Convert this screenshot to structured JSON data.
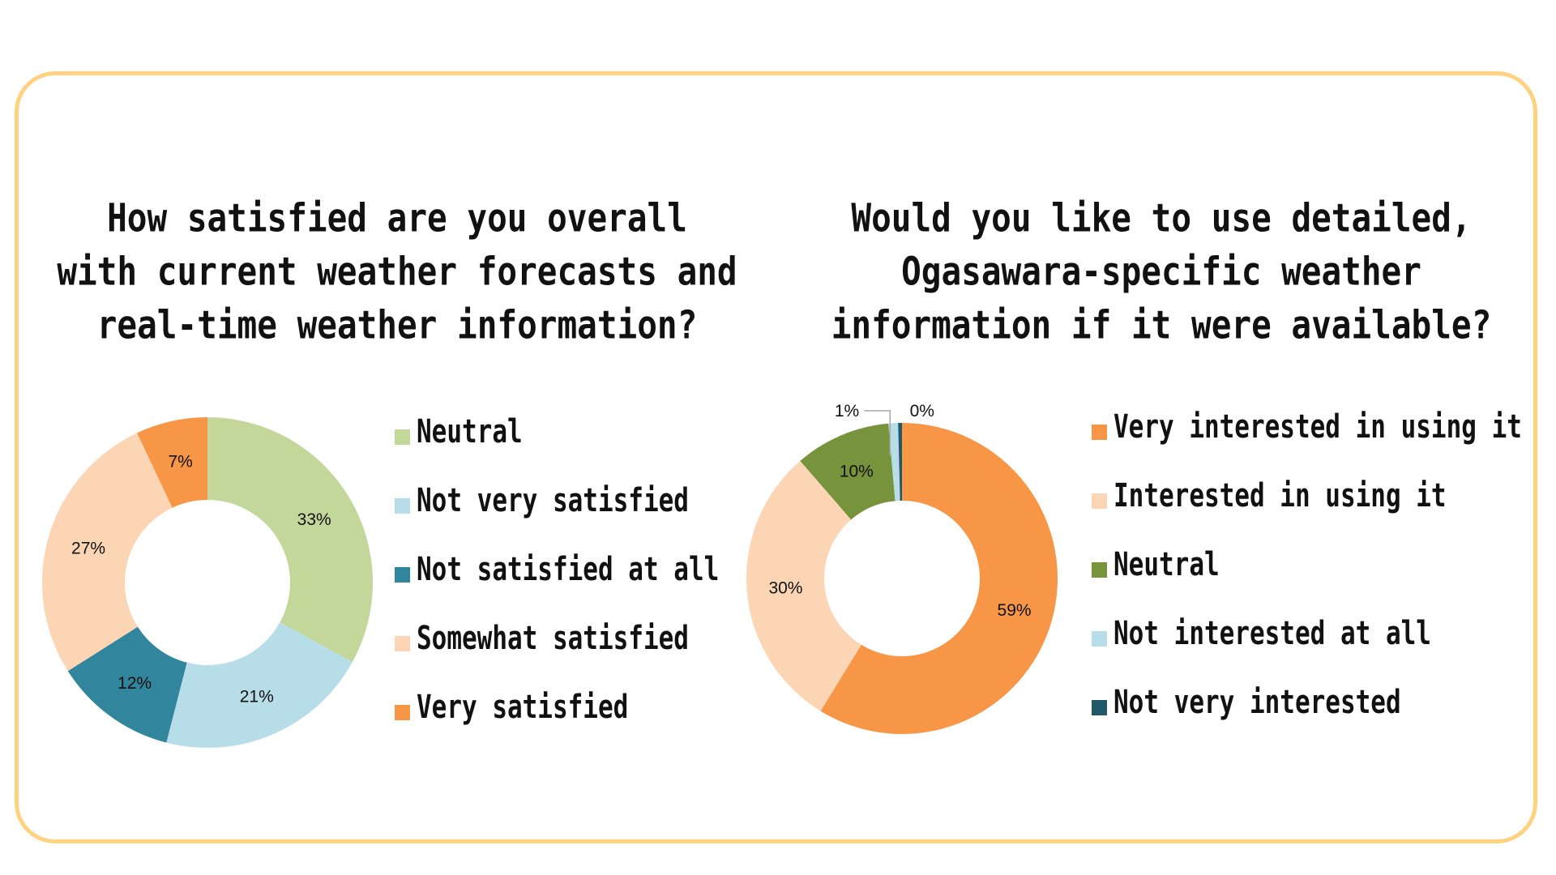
{
  "chart_data": [
    {
      "type": "pie",
      "variant": "donut",
      "title_lines": [
        "How satisfied are you overall",
        "with current weather forecasts and",
        "real-time weather information?"
      ],
      "legend_position": "right",
      "slices": [
        {
          "name": "Neutral",
          "value": 33,
          "label": "33%",
          "color": "#C4D79B"
        },
        {
          "name": "Not very satisfied",
          "value": 21,
          "label": "21%",
          "color": "#B7DEE8"
        },
        {
          "name": "Not satisfied at all",
          "value": 12,
          "label": "12%",
          "color": "#31859C"
        },
        {
          "name": "Somewhat satisfied",
          "value": 27,
          "label": "27%",
          "color": "#FCD5B4"
        },
        {
          "name": "Very satisfied",
          "value": 7,
          "label": "7%",
          "color": "#F79646"
        }
      ]
    },
    {
      "type": "pie",
      "variant": "donut",
      "title_lines": [
        "Would you like to use detailed,",
        "Ogasawara-specific weather",
        "information if it were available?"
      ],
      "legend_position": "right",
      "slices": [
        {
          "name": "Very interested in using it",
          "value": 59,
          "label": "59%",
          "color": "#F79646"
        },
        {
          "name": "Interested in using it",
          "value": 30,
          "label": "30%",
          "color": "#FCD5B4"
        },
        {
          "name": "Neutral",
          "value": 10,
          "label": "10%",
          "color": "#77933C"
        },
        {
          "name": "Not interested at all",
          "value": 1,
          "label": "1%",
          "color": "#B7DEE8"
        },
        {
          "name": "Not very interested",
          "value": 0.4,
          "label": "0%",
          "color": "#215968"
        }
      ]
    }
  ],
  "frame_color": "#FFD27F"
}
